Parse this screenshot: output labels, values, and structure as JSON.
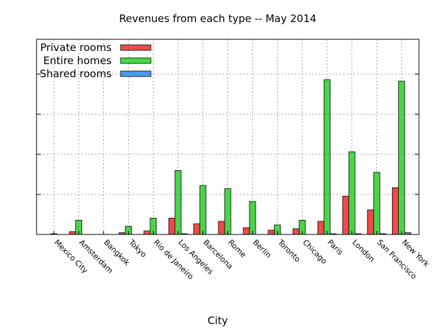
{
  "chart_data": {
    "type": "bar",
    "title": "Revenues from each type -- May 2014",
    "xlabel": "City",
    "ylabel": "",
    "ylim": [
      0,
      5.5
    ],
    "grid": true,
    "legend_position": "top-left",
    "categories": [
      "Mexico City",
      "Amsterdam",
      "Bangkok",
      "Tokyo",
      "Rio de Janeiro",
      "Los Angeles",
      "Barcelona",
      "Rome",
      "Berlin",
      "Toronto",
      "Chicago",
      "Paris",
      "London",
      "San Francisco",
      "New York"
    ],
    "series": [
      {
        "name": "Private rooms",
        "color": "#f04a4a",
        "values": [
          0.0,
          0.08,
          0.0,
          0.05,
          0.1,
          0.46,
          0.3,
          0.37,
          0.19,
          0.12,
          0.16,
          0.37,
          1.08,
          0.69,
          1.32
        ]
      },
      {
        "name": "Entire homes",
        "color": "#4ad44a",
        "values": [
          0.02,
          0.4,
          0.0,
          0.23,
          0.46,
          1.8,
          1.38,
          1.29,
          0.93,
          0.27,
          0.4,
          4.36,
          2.33,
          1.75,
          4.32
        ]
      },
      {
        "name": "Shared rooms",
        "color": "#4a9af2",
        "values": [
          0.0,
          0.0,
          0.0,
          0.0,
          0.0,
          0.02,
          0.0,
          0.0,
          0.0,
          0.0,
          0.0,
          0.02,
          0.02,
          0.02,
          0.05
        ]
      }
    ]
  }
}
